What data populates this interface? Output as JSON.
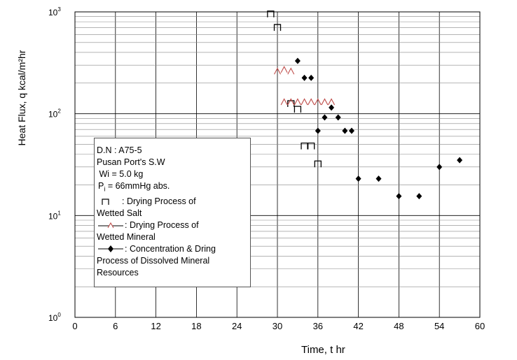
{
  "chart_data": {
    "type": "scatter",
    "title": "",
    "xlabel": "Time, t  hr",
    "ylabel": "Heat Flux, q  kcal/m²hr",
    "xlim": [
      0,
      60
    ],
    "x_ticks": [
      0,
      6,
      12,
      18,
      24,
      30,
      36,
      42,
      48,
      54,
      60
    ],
    "x_tick_labels": [
      "0",
      "6",
      "12",
      "18",
      "24",
      "30",
      "36",
      "42",
      "48",
      "54",
      "60"
    ],
    "yscale": "log",
    "ylim": [
      1,
      1000
    ],
    "y_tick_labels": [
      {
        "base": "10",
        "exp": "0",
        "value": 1
      },
      {
        "base": "10",
        "exp": "1",
        "value": 10
      },
      {
        "base": "10",
        "exp": "2",
        "value": 100
      },
      {
        "base": "10",
        "exp": "3",
        "value": 1000
      }
    ],
    "grid": true,
    "series": [
      {
        "marker": "open-square",
        "color": "#000000",
        "points": [
          {
            "x": 29,
            "y": 950
          },
          {
            "x": 30,
            "y": 700
          },
          {
            "x": 32,
            "y": 125
          },
          {
            "x": 33,
            "y": 110
          },
          {
            "x": 34,
            "y": 48
          },
          {
            "x": 35,
            "y": 48
          },
          {
            "x": 36,
            "y": 32
          }
        ]
      },
      {
        "marker": "open-triangle",
        "color": "#c0504d",
        "points": [
          {
            "x": 30,
            "y": 260
          },
          {
            "x": 31,
            "y": 270
          },
          {
            "x": 32,
            "y": 260
          },
          {
            "x": 31,
            "y": 130
          },
          {
            "x": 32,
            "y": 130
          },
          {
            "x": 33,
            "y": 130
          },
          {
            "x": 34,
            "y": 130
          },
          {
            "x": 35,
            "y": 130
          },
          {
            "x": 36,
            "y": 130
          },
          {
            "x": 37,
            "y": 130
          },
          {
            "x": 38,
            "y": 130
          }
        ]
      },
      {
        "marker": "filled-diamond",
        "color": "#000000",
        "points": [
          {
            "x": 33,
            "y": 330
          },
          {
            "x": 34,
            "y": 225
          },
          {
            "x": 35,
            "y": 225
          },
          {
            "x": 38,
            "y": 115
          },
          {
            "x": 37,
            "y": 92
          },
          {
            "x": 39,
            "y": 92
          },
          {
            "x": 36,
            "y": 68
          },
          {
            "x": 40,
            "y": 68
          },
          {
            "x": 41,
            "y": 68
          },
          {
            "x": 42,
            "y": 23
          },
          {
            "x": 45,
            "y": 23
          },
          {
            "x": 48,
            "y": 15.5
          },
          {
            "x": 51,
            "y": 15.5
          },
          {
            "x": 54,
            "y": 30
          },
          {
            "x": 57,
            "y": 35
          }
        ]
      }
    ],
    "legend": {
      "placement": "lower-left",
      "lines": [
        "D.N :  A75-5",
        "Pusan Port's  S.W",
        " Wi = 5.0 kg",
        "P",
        "i",
        " = 66mmHg abs.",
        ": Drying Process  of",
        "Wetted Salt",
        ": Drying Process of",
        "Wetted Mineral",
        ": Concentration & Dring",
        "Process of Dissolved  Mineral",
        "Resources"
      ]
    }
  }
}
